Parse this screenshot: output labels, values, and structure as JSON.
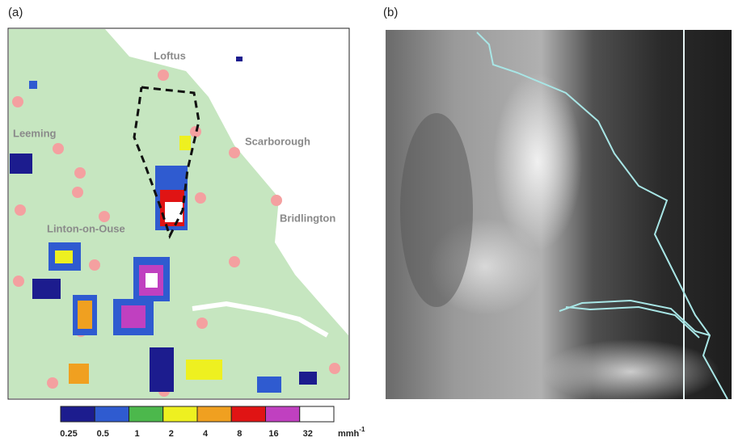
{
  "panels": {
    "a": {
      "label": "(a)",
      "places": [
        "Loftus",
        "Leeming",
        "Scarborough",
        "Bridlington",
        "Linton-on-Ouse"
      ]
    },
    "b": {
      "label": "(b)"
    }
  },
  "colorbar": {
    "ticks": [
      0.25,
      0.5,
      1,
      2,
      4,
      8,
      16,
      32
    ],
    "colors": [
      "#1c1c8e",
      "#2f5bd0",
      "#4cb84c",
      "#eef020",
      "#f0a020",
      "#e01414",
      "#c040c0",
      "#ffffff"
    ],
    "unit": "mmh",
    "unit_exponent": "-1"
  }
}
